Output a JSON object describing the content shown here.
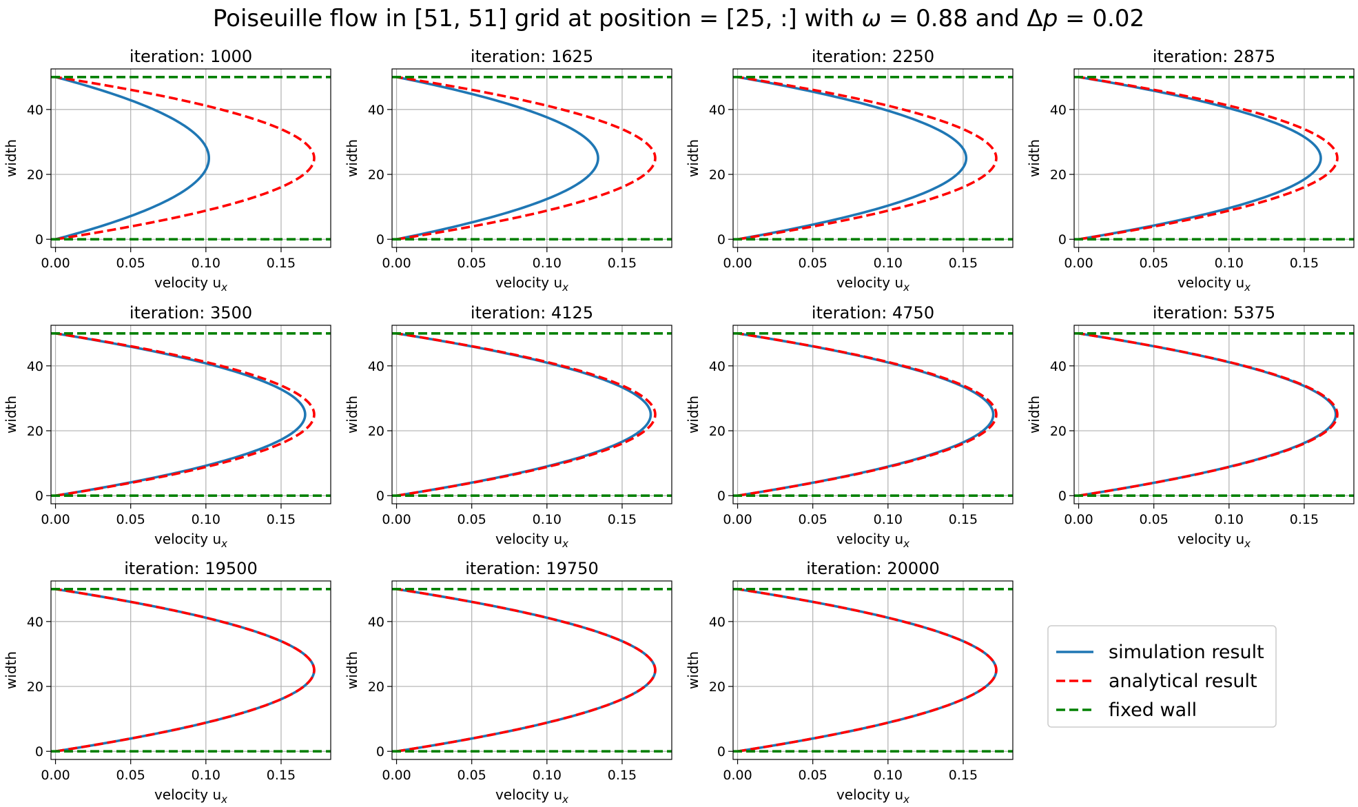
{
  "figure": {
    "title_prefix": "Poiseuille flow in [51, 51] grid at position = [25, :] with ",
    "title_omega_symbol": "ω",
    "title_omega_value": " = 0.88 and Δ",
    "title_p_symbol": "p",
    "title_dp_value": " = 0.02"
  },
  "colors": {
    "simulation": "#1f77b4",
    "analytical": "#ff0000",
    "wall": "#008000",
    "grid": "#b0b0b0"
  },
  "chart_data": {
    "type": "line",
    "grid": true,
    "layout": "3x4 small multiples",
    "xlabel_main": "velocity u",
    "xlabel_sub": "x",
    "ylabel": "width",
    "xlim": [
      -0.003,
      0.183
    ],
    "ylim": [
      -2.5,
      52.5
    ],
    "xticks": [
      0.0,
      0.05,
      0.1,
      0.15
    ],
    "xtick_labels": [
      "0.00",
      "0.05",
      "0.10",
      "0.15"
    ],
    "yticks": [
      0,
      20,
      40
    ],
    "ytick_labels": [
      "0",
      "20",
      "40"
    ],
    "y_range": [
      0,
      50
    ],
    "wall_positions": [
      0,
      50
    ],
    "analytical_max": 0.172,
    "panels": [
      {
        "title": "iteration: 1000",
        "simulation_max": 0.102
      },
      {
        "title": "iteration: 1625",
        "simulation_max": 0.134
      },
      {
        "title": "iteration: 2250",
        "simulation_max": 0.152
      },
      {
        "title": "iteration: 2875",
        "simulation_max": 0.161
      },
      {
        "title": "iteration: 3500",
        "simulation_max": 0.166
      },
      {
        "title": "iteration: 4125",
        "simulation_max": 0.169
      },
      {
        "title": "iteration: 4750",
        "simulation_max": 0.17
      },
      {
        "title": "iteration: 5375",
        "simulation_max": 0.171
      },
      {
        "title": "iteration: 19500",
        "simulation_max": 0.172
      },
      {
        "title": "iteration: 19750",
        "simulation_max": 0.172
      },
      {
        "title": "iteration: 20000",
        "simulation_max": 0.172
      }
    ],
    "legend": {
      "placement": "lower-right (empty 12th panel)",
      "entries": [
        {
          "label": "simulation result",
          "style": "solid",
          "color_key": "simulation"
        },
        {
          "label": "analytical result",
          "style": "dashed",
          "color_key": "analytical"
        },
        {
          "label": "fixed wall",
          "style": "dashed",
          "color_key": "wall"
        }
      ]
    }
  }
}
